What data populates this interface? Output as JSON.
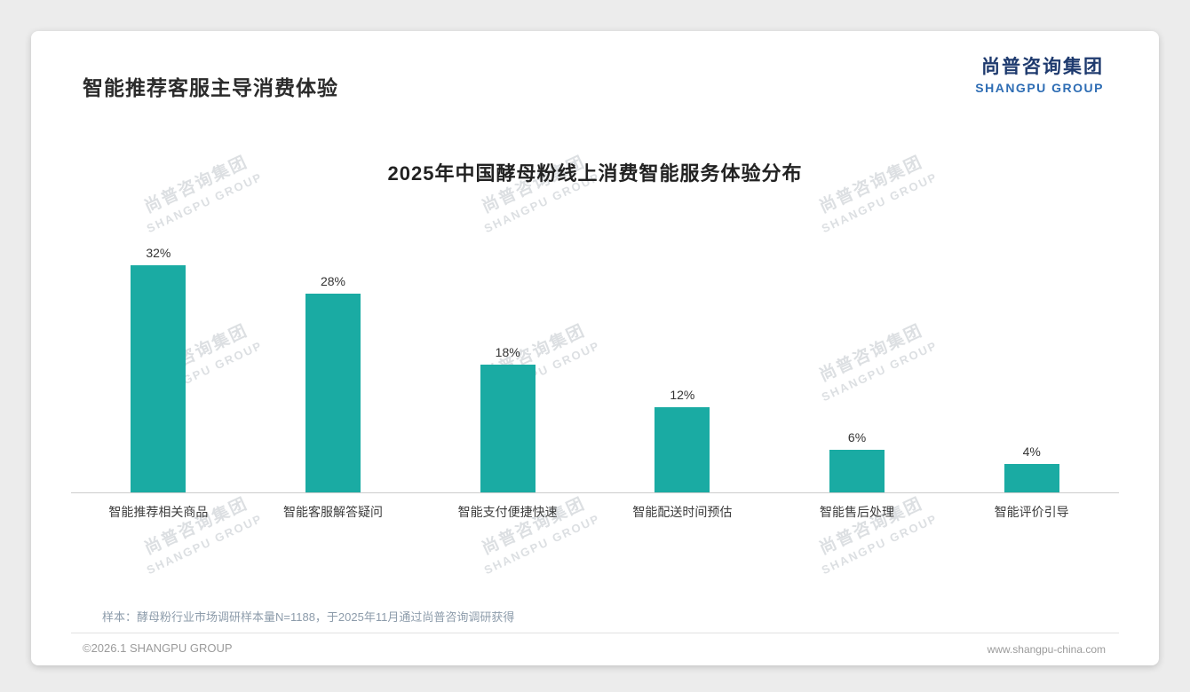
{
  "page": {
    "title": "智能推荐客服主导消费体验",
    "logo": {
      "cn": "尚普咨询集团",
      "en": "SHANGPU GROUP"
    },
    "note": "样本：酵母粉行业市场调研样本量N=1188，于2025年11月通过尚普咨询调研获得",
    "footer": {
      "copyright": "©2026.1 SHANGPU GROUP",
      "website": "www.shangpu-china.com"
    }
  },
  "watermark": {
    "cn": "尚普咨询集团",
    "en": "SHANGPU GROUP"
  },
  "chart_data": {
    "type": "bar",
    "title": "2025年中国酵母粉线上消费智能服务体验分布",
    "categories": [
      "智能推荐相关商品",
      "智能客服解答疑问",
      "智能支付便捷快速",
      "智能配送时间预估",
      "智能售后处理",
      "智能评价引导"
    ],
    "values": [
      32,
      28,
      18,
      12,
      6,
      4
    ],
    "unit": "%",
    "bar_color": "#1aaba3",
    "ylim": [
      0,
      35
    ],
    "grid": false,
    "legend_position": "none",
    "value_labels": true
  }
}
